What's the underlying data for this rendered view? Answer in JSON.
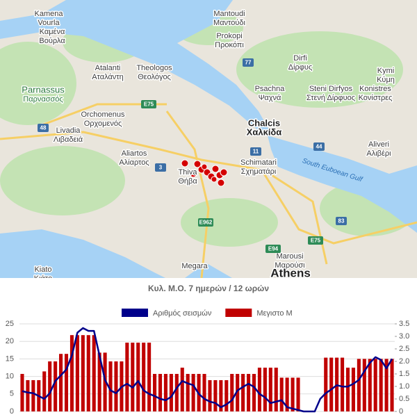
{
  "map": {
    "labels": [
      {
        "name": "Kamena",
        "local": "Vourla"
      },
      {
        "name": "Καμένα",
        "local": "Βούρλα"
      },
      {
        "name": "Mantoudi",
        "local": "Μαντούδι"
      },
      {
        "name": "Prokopi",
        "local": "Προκόπι"
      },
      {
        "name": "Atalanti",
        "local": "Αταλάντη"
      },
      {
        "name": "Theologos",
        "local": "Θεολόγος"
      },
      {
        "name": "Dirfi",
        "local": "Δίρφυς"
      },
      {
        "name": "Kymi",
        "local": "Κύμη"
      },
      {
        "name": "Parnassus",
        "local": "Παρνασσός"
      },
      {
        "name": "Psachna",
        "local": "Ψαχνά"
      },
      {
        "name": "Steni Dirfyos",
        "local": "Στενή Δίρφυος"
      },
      {
        "name": "Konistres",
        "local": "Κονίστρες"
      },
      {
        "name": "Orchomenus",
        "local": "Ορχομενός"
      },
      {
        "name": "Livadia",
        "local": "Λιβαδειά"
      },
      {
        "name": "Chalcis",
        "local": "Χαλκίδα"
      },
      {
        "name": "Aliartos",
        "local": "Αλίαρτος"
      },
      {
        "name": "Aliveri",
        "local": "Αλιβέρι"
      },
      {
        "name": "Thiva",
        "local": "Θήβα"
      },
      {
        "name": "Schimatari",
        "local": "Σχηματάρι"
      },
      {
        "name": "Marousi",
        "local": "Μαρούσι"
      },
      {
        "name": "Kiato",
        "local": "Κιάτο"
      }
    ],
    "places": [
      "Megara",
      "Athens",
      "South Euboean Gulf"
    ],
    "roads": [
      "77",
      "E75",
      "48",
      "3",
      "11",
      "44",
      "E962",
      "83",
      "E94",
      "E75"
    ]
  },
  "chart_data": {
    "type": "bar_line",
    "title": "Κυλ. Μ.Ο. 7 ημερών / 12 ωρών",
    "ylim": [
      0,
      25
    ],
    "yticks": [
      0,
      5,
      10,
      15,
      20,
      25
    ],
    "y2lim": [
      0,
      3.5
    ],
    "y2ticks": [
      0,
      0.5,
      {
        "value": 1,
        "label": "1.0"
      },
      1.5,
      {
        "value": 2,
        "label": "2.0"
      },
      2.5,
      {
        "value": 3,
        "label": "3.0"
      },
      3.5
    ],
    "grid": true,
    "series": [
      {
        "name": "Αριθμός σεισμών",
        "color": "#00008b",
        "kind": "line",
        "values": [
          5.8,
          5.4,
          5.2,
          4.4,
          3.6,
          5.2,
          8.7,
          10.3,
          12,
          16,
          22.5,
          23.8,
          23,
          23,
          16,
          9,
          6,
          5.2,
          7,
          7.9,
          6.8,
          8.7,
          6,
          5,
          4.4,
          3.6,
          3.2,
          4.2,
          6.7,
          8.7,
          8,
          7.5,
          5,
          3.6,
          2.8,
          2.4,
          1.2,
          2,
          3.2,
          6,
          7,
          7.9,
          7,
          5,
          4,
          2.4,
          2.8,
          3.2,
          1.2,
          0.8,
          0.4,
          0,
          0,
          0,
          3.6,
          5.2,
          6.3,
          7.5,
          7.1,
          7.1,
          7.9,
          9,
          11.5,
          13.9,
          15.5,
          14.7,
          12.3,
          15
        ]
      },
      {
        "name": "Μεγιστο Μ",
        "color": "#c00000",
        "kind": "bar",
        "axis": "y2",
        "values": [
          1.5,
          1.25,
          1.25,
          1.25,
          1.6,
          2,
          2,
          2.3,
          2.3,
          3.05,
          3.05,
          3.05,
          3.05,
          3.05,
          2.35,
          2.35,
          2,
          2,
          2,
          2.75,
          2.75,
          2.75,
          2.75,
          2.75,
          1.5,
          1.5,
          1.5,
          1.5,
          1.5,
          1.75,
          1.5,
          1.5,
          1.5,
          1.5,
          1.25,
          1.25,
          1.25,
          1.25,
          1.5,
          1.5,
          1.5,
          1.5,
          1.5,
          1.75,
          1.75,
          1.75,
          1.75,
          1.35,
          1.35,
          1.35,
          1.35,
          0,
          0,
          0,
          0,
          2.15,
          2.15,
          2.15,
          2.15,
          1.75,
          1.75,
          2.1,
          2.1,
          2.1,
          2.1,
          2.1,
          2.1,
          2.1
        ]
      }
    ]
  }
}
